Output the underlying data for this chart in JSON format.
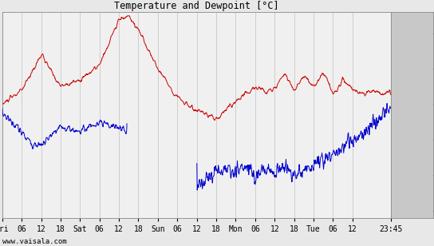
{
  "title": "Temperature and Dewpoint [°C]",
  "ylim": [
    -16,
    13
  ],
  "yticks": [
    -15,
    -10,
    -5,
    0,
    5,
    10
  ],
  "background_color": "#e8e8e8",
  "plot_bg_color": "#f0f0f0",
  "grid_color": "#c0c0c0",
  "temp_color": "#cc0000",
  "dew_color": "#0000cc",
  "linewidth": 0.7,
  "watermark": "www.vaisala.com",
  "xtick_labels": [
    "Fri",
    "06",
    "12",
    "18",
    "Sat",
    "06",
    "12",
    "18",
    "Sun",
    "06",
    "12",
    "18",
    "Mon",
    "06",
    "12",
    "18",
    "Tue",
    "06",
    "12",
    "23:45"
  ],
  "figsize": [
    5.44,
    3.08
  ],
  "dpi": 100,
  "right_panel_color": "#c8c8c8"
}
